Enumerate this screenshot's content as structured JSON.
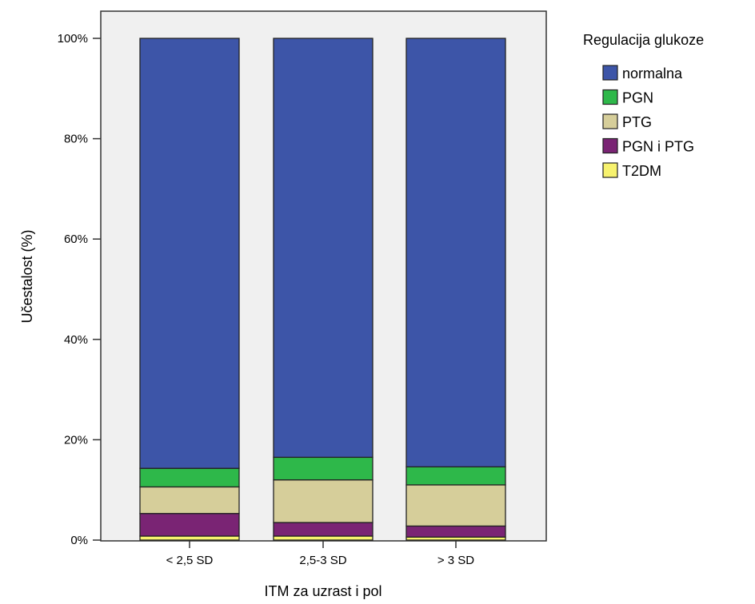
{
  "chart_data": {
    "type": "bar",
    "stacked": true,
    "categories": [
      "< 2,5 SD",
      "2,5-3 SD",
      "> 3 SD"
    ],
    "series": [
      {
        "name": "T2DM",
        "color": "#F7F26E",
        "values": [
          0.8,
          0.8,
          0.6
        ]
      },
      {
        "name": "PGN i PTG",
        "color": "#7A2474",
        "values": [
          4.5,
          2.7,
          2.2
        ]
      },
      {
        "name": "PTG",
        "color": "#D6CE9A",
        "values": [
          5.3,
          8.5,
          8.2
        ]
      },
      {
        "name": "PGN",
        "color": "#2EB84A",
        "values": [
          3.7,
          4.5,
          3.6
        ]
      },
      {
        "name": "normalna",
        "color": "#3D55A8",
        "values": [
          85.7,
          83.5,
          85.4
        ]
      }
    ],
    "xlabel": "ITM za uzrast i pol",
    "ylabel": "Učestalost (%)",
    "ylim": [
      0,
      100
    ],
    "yticks": [
      "0%",
      "20%",
      "40%",
      "60%",
      "80%",
      "100%"
    ],
    "legend": {
      "title": "Regulacija glukoze",
      "entries": [
        "normalna",
        "PGN",
        "PTG",
        "PGN i PTG",
        "T2DM"
      ],
      "placement": "right"
    },
    "plot_background": "#F0F0F0",
    "grid": false
  }
}
